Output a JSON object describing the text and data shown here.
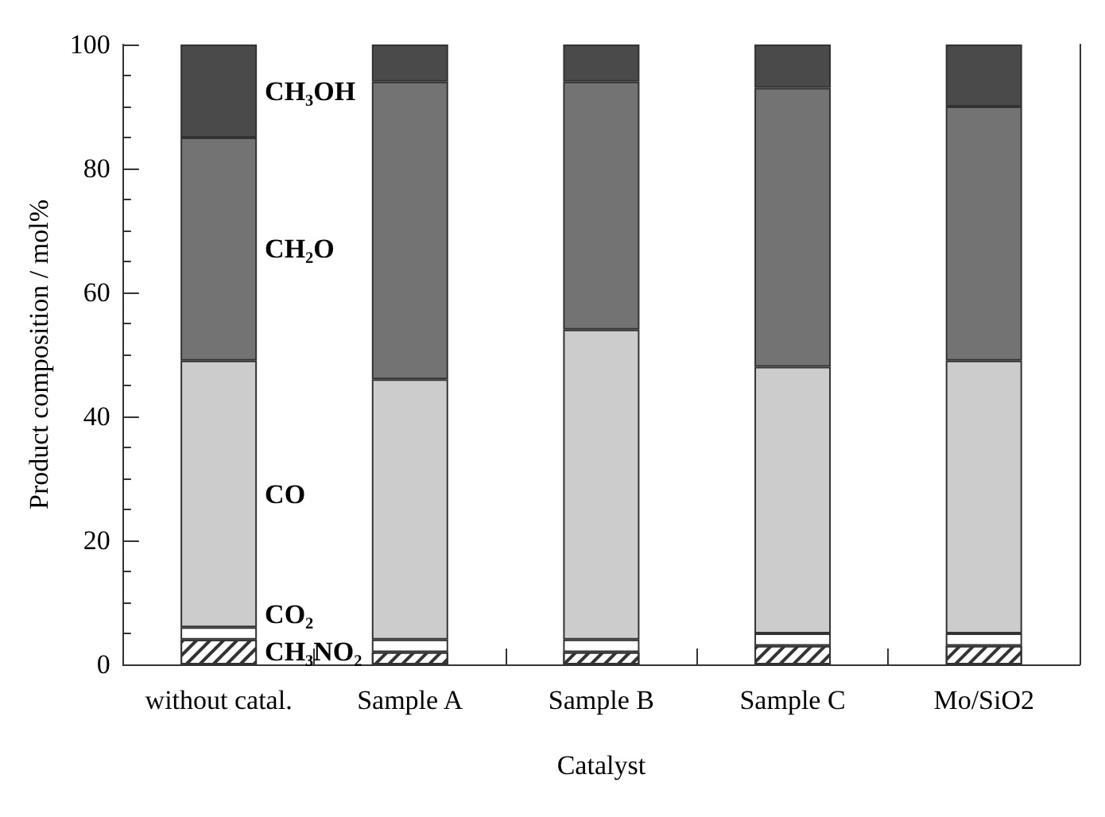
{
  "chart_data": {
    "type": "bar",
    "stacked": true,
    "xlabel": "Catalyst",
    "ylabel": "Product composition / mol%",
    "categories": [
      "without catal.",
      "Sample A",
      "Sample B",
      "Sample C",
      "Mo/SiO2"
    ],
    "ylim": [
      0,
      100
    ],
    "yticks": [
      0,
      20,
      40,
      60,
      80,
      100
    ],
    "grid": false,
    "legend": false,
    "series": [
      {
        "name": "CH₃NO₂",
        "color": "#ffffff",
        "values": [
          4,
          2,
          2,
          3,
          3
        ]
      },
      {
        "name": "CO₂",
        "color": "#ffffff",
        "values": [
          2,
          2,
          2,
          2,
          2
        ]
      },
      {
        "name": "CO",
        "color": "#cccccc",
        "values": [
          43,
          42,
          50,
          43,
          44
        ]
      },
      {
        "name": "CH₂O",
        "color": "#737373",
        "values": [
          36,
          48,
          40,
          45,
          41
        ]
      },
      {
        "name": "CH₃OH",
        "color": "#4a4a4a",
        "values": [
          15,
          6,
          6,
          7,
          10
        ]
      }
    ]
  }
}
